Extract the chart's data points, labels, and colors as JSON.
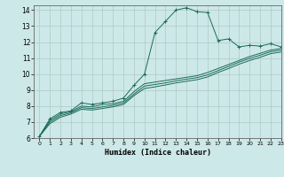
{
  "title": "",
  "xlabel": "Humidex (Indice chaleur)",
  "ylabel": "",
  "background_color": "#cde8e8",
  "grid_color": "#b0c8c8",
  "line_color": "#1a6b5a",
  "xlim": [
    -0.5,
    23
  ],
  "ylim": [
    6,
    14.3
  ],
  "xticks": [
    0,
    1,
    2,
    3,
    4,
    5,
    6,
    7,
    8,
    9,
    10,
    11,
    12,
    13,
    14,
    15,
    16,
    17,
    18,
    19,
    20,
    21,
    22,
    23
  ],
  "yticks": [
    6,
    7,
    8,
    9,
    10,
    11,
    12,
    13,
    14
  ],
  "lines": [
    {
      "x": [
        0,
        1,
        2,
        3,
        4,
        5,
        6,
        7,
        8,
        9,
        10,
        11,
        12,
        13,
        14,
        15,
        16,
        17,
        18,
        19,
        20,
        21,
        22,
        23
      ],
      "y": [
        6.1,
        7.2,
        7.6,
        7.7,
        8.2,
        8.1,
        8.2,
        8.3,
        8.5,
        9.3,
        10.0,
        12.6,
        13.3,
        14.0,
        14.15,
        13.9,
        13.85,
        12.1,
        12.2,
        11.7,
        11.8,
        11.75,
        11.9,
        11.7
      ],
      "marker": "+"
    },
    {
      "x": [
        0,
        1,
        2,
        3,
        4,
        5,
        6,
        7,
        8,
        9,
        10,
        11,
        12,
        13,
        14,
        15,
        16,
        17,
        18,
        19,
        20,
        21,
        22,
        23
      ],
      "y": [
        6.1,
        7.1,
        7.5,
        7.65,
        8.0,
        7.95,
        8.1,
        8.15,
        8.3,
        8.9,
        9.4,
        9.5,
        9.6,
        9.7,
        9.8,
        9.9,
        10.1,
        10.35,
        10.6,
        10.85,
        11.1,
        11.3,
        11.5,
        11.6
      ],
      "marker": null
    },
    {
      "x": [
        0,
        1,
        2,
        3,
        4,
        5,
        6,
        7,
        8,
        9,
        10,
        11,
        12,
        13,
        14,
        15,
        16,
        17,
        18,
        19,
        20,
        21,
        22,
        23
      ],
      "y": [
        6.1,
        7.0,
        7.4,
        7.58,
        7.9,
        7.85,
        7.95,
        8.05,
        8.2,
        8.75,
        9.25,
        9.35,
        9.45,
        9.58,
        9.68,
        9.78,
        9.95,
        10.22,
        10.48,
        10.75,
        10.98,
        11.18,
        11.4,
        11.5
      ],
      "marker": null
    },
    {
      "x": [
        0,
        1,
        2,
        3,
        4,
        5,
        6,
        7,
        8,
        9,
        10,
        11,
        12,
        13,
        14,
        15,
        16,
        17,
        18,
        19,
        20,
        21,
        22,
        23
      ],
      "y": [
        6.1,
        6.9,
        7.3,
        7.5,
        7.8,
        7.75,
        7.85,
        7.95,
        8.1,
        8.65,
        9.1,
        9.2,
        9.32,
        9.45,
        9.55,
        9.65,
        9.82,
        10.1,
        10.35,
        10.62,
        10.85,
        11.05,
        11.28,
        11.38
      ],
      "marker": null
    }
  ]
}
